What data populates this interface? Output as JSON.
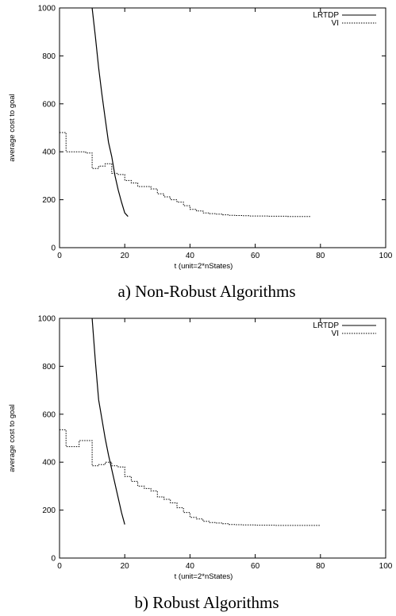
{
  "chart_data": [
    {
      "type": "line",
      "caption": "a) Non-Robust Algorithms",
      "xlabel": "t (unit=2*nStates)",
      "ylabel": "average cost to goal",
      "xlim": [
        0,
        100
      ],
      "ylim": [
        0,
        1000
      ],
      "xticks": [
        "0",
        "20",
        "40",
        "60",
        "80",
        "100"
      ],
      "yticks": [
        "0",
        "200",
        "400",
        "600",
        "800",
        "1000"
      ],
      "grid": false,
      "legend_position": "top-right",
      "series": [
        {
          "name": "LRTDP",
          "style": "solid",
          "x": [
            10,
            11,
            12,
            13,
            14,
            15,
            16,
            17,
            18,
            19,
            20,
            21
          ],
          "y": [
            1000,
            880,
            750,
            640,
            540,
            440,
            380,
            300,
            240,
            190,
            145,
            130
          ]
        },
        {
          "name": "VI",
          "style": "dotted",
          "step": true,
          "x": [
            0,
            2,
            4,
            6,
            8,
            10,
            12,
            14,
            16,
            18,
            20,
            22,
            24,
            26,
            28,
            30,
            32,
            34,
            36,
            38,
            40,
            42,
            44,
            46,
            48,
            50,
            52,
            54,
            56,
            58,
            60,
            62,
            64,
            66,
            68,
            70,
            72,
            74,
            76,
            77
          ],
          "y": [
            480,
            400,
            400,
            400,
            395,
            330,
            340,
            350,
            310,
            305,
            280,
            270,
            255,
            255,
            245,
            225,
            212,
            200,
            190,
            175,
            160,
            153,
            145,
            142,
            140,
            137,
            135,
            134,
            133,
            132,
            132,
            132,
            131,
            131,
            131,
            130,
            130,
            130,
            130,
            130
          ]
        }
      ]
    },
    {
      "type": "line",
      "caption": "b) Robust Algorithms",
      "xlabel": "t (unit=2*nStates)",
      "ylabel": "average cost to goal",
      "xlim": [
        0,
        100
      ],
      "ylim": [
        0,
        1000
      ],
      "xticks": [
        "0",
        "20",
        "40",
        "60",
        "80",
        "100"
      ],
      "yticks": [
        "0",
        "200",
        "400",
        "600",
        "800",
        "1000"
      ],
      "grid": false,
      "legend_position": "top-right",
      "series": [
        {
          "name": "LRTDP",
          "style": "solid",
          "x": [
            10,
            11,
            12,
            13,
            14,
            15,
            16,
            17,
            18,
            19,
            20
          ],
          "y": [
            1000,
            820,
            660,
            580,
            500,
            430,
            370,
            310,
            250,
            190,
            140
          ]
        },
        {
          "name": "VI",
          "style": "dotted",
          "step": true,
          "x": [
            0,
            2,
            4,
            6,
            8,
            10,
            12,
            14,
            16,
            18,
            20,
            22,
            24,
            26,
            28,
            30,
            32,
            34,
            36,
            38,
            40,
            42,
            44,
            46,
            48,
            50,
            52,
            54,
            56,
            58,
            60,
            62,
            64,
            66,
            68,
            70,
            72,
            74,
            76,
            78,
            80
          ],
          "y": [
            535,
            465,
            465,
            490,
            490,
            385,
            390,
            400,
            385,
            380,
            340,
            320,
            300,
            290,
            280,
            255,
            245,
            230,
            210,
            190,
            170,
            163,
            153,
            148,
            146,
            143,
            140,
            139,
            138,
            138,
            137,
            137,
            137,
            136,
            136,
            136,
            136,
            136,
            136,
            136,
            135
          ]
        }
      ]
    }
  ]
}
